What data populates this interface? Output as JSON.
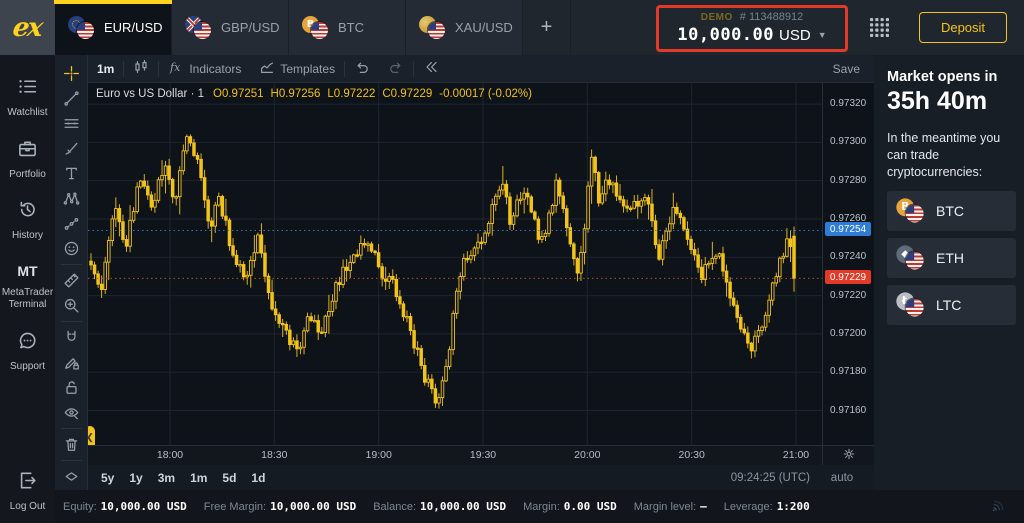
{
  "header": {
    "tabs": [
      {
        "label": "EUR/USD",
        "flag": "eur",
        "active": true
      },
      {
        "label": "GBP/USD",
        "flag": "gbp",
        "active": false
      },
      {
        "label": "BTC",
        "flag": "btc",
        "active": false
      },
      {
        "label": "XAU/USD",
        "flag": "xau",
        "active": false
      }
    ],
    "add_tab_label": "+",
    "account": {
      "badge": "DEMO",
      "id": "# 113488912",
      "balance": "10,000.00",
      "currency": "USD"
    },
    "deposit_label": "Deposit"
  },
  "sidebar": {
    "items": [
      {
        "label": "Watchlist",
        "icon": "watchlist"
      },
      {
        "label": "Portfolio",
        "icon": "portfolio"
      },
      {
        "label": "History",
        "icon": "history"
      },
      {
        "label": "MetaTrader Terminal",
        "icon": "mt",
        "icon_text": "MT"
      },
      {
        "label": "Support",
        "icon": "support"
      }
    ],
    "logout": {
      "label": "Log Out",
      "icon": "logout"
    }
  },
  "toolbar": {
    "interval": "1m",
    "indicators_label": "Indicators",
    "templates_label": "Templates",
    "save_label": "Save"
  },
  "drawbar": {
    "active_tool": "crosshair",
    "tools": [
      "crosshair",
      "trend-line",
      "parallel-lines",
      "brush",
      "text",
      "xabcd-pattern",
      "forecast",
      "emoji",
      "ruler",
      "zoom-in",
      "magnet",
      "drawing-lock",
      "lock-all",
      "hide-all",
      "trash",
      "collapse"
    ]
  },
  "chart_data": {
    "type": "candlestick",
    "title": "Euro vs US Dollar",
    "interval": "1",
    "legend_ohlc": {
      "open": "0.97251",
      "high": "0.97256",
      "low": "0.97222",
      "close": "0.97229",
      "change": "-0.00017 (-0.02%)"
    },
    "last_candle": {
      "open": 0.97251,
      "high": 0.97256,
      "low": 0.97222,
      "close": 0.97229
    },
    "ask_price": 0.97254,
    "ask_label": "0.97254",
    "bid_price": 0.97229,
    "bid_label": "0.97229",
    "y_ticks": [
      "0.97320",
      "0.97300",
      "0.97280",
      "0.97260",
      "0.97240",
      "0.97220",
      "0.97200",
      "0.97180",
      "0.97160"
    ],
    "x_ticks": [
      "18:00",
      "18:30",
      "19:00",
      "19:30",
      "20:00",
      "20:30",
      "21:00"
    ],
    "y_range": [
      0.97142,
      0.97331
    ],
    "grid": true,
    "legend_position": "top-left",
    "candle_count": 199,
    "waypoints": [
      [
        0.0,
        0.97238
      ],
      [
        0.014,
        0.97222
      ],
      [
        0.032,
        0.97266
      ],
      [
        0.05,
        0.97246
      ],
      [
        0.068,
        0.97278
      ],
      [
        0.088,
        0.97268
      ],
      [
        0.105,
        0.97288
      ],
      [
        0.12,
        0.9727
      ],
      [
        0.135,
        0.97308
      ],
      [
        0.152,
        0.97288
      ],
      [
        0.168,
        0.97255
      ],
      [
        0.182,
        0.9727
      ],
      [
        0.205,
        0.97238
      ],
      [
        0.22,
        0.97228
      ],
      [
        0.237,
        0.97252
      ],
      [
        0.262,
        0.97208
      ],
      [
        0.295,
        0.97192
      ],
      [
        0.31,
        0.97212
      ],
      [
        0.325,
        0.97198
      ],
      [
        0.345,
        0.97222
      ],
      [
        0.37,
        0.9724
      ],
      [
        0.392,
        0.9725
      ],
      [
        0.412,
        0.97232
      ],
      [
        0.432,
        0.97225
      ],
      [
        0.455,
        0.972
      ],
      [
        0.475,
        0.97178
      ],
      [
        0.49,
        0.97163
      ],
      [
        0.505,
        0.9718
      ],
      [
        0.522,
        0.9723
      ],
      [
        0.538,
        0.97242
      ],
      [
        0.555,
        0.97248
      ],
      [
        0.585,
        0.97283
      ],
      [
        0.595,
        0.9726
      ],
      [
        0.62,
        0.97276
      ],
      [
        0.64,
        0.97246
      ],
      [
        0.662,
        0.97278
      ],
      [
        0.68,
        0.9725
      ],
      [
        0.694,
        0.97232
      ],
      [
        0.705,
        0.97262
      ],
      [
        0.711,
        0.97296
      ],
      [
        0.722,
        0.9727
      ],
      [
        0.74,
        0.97282
      ],
      [
        0.76,
        0.97262
      ],
      [
        0.788,
        0.97274
      ],
      [
        0.809,
        0.9724
      ],
      [
        0.83,
        0.97268
      ],
      [
        0.85,
        0.97248
      ],
      [
        0.868,
        0.9723
      ],
      [
        0.89,
        0.97244
      ],
      [
        0.905,
        0.97224
      ],
      [
        0.92,
        0.9721
      ],
      [
        0.94,
        0.97191
      ],
      [
        0.96,
        0.97212
      ],
      [
        0.978,
        0.97235
      ],
      [
        0.992,
        0.97252
      ],
      [
        1.0,
        0.9724
      ]
    ]
  },
  "right_panel": {
    "title": "Market opens in",
    "countdown": "35h 40m",
    "subtitle": "In the meantime you can trade cryptocurrencies:",
    "cryptos": [
      {
        "label": "BTC",
        "icon": "btc"
      },
      {
        "label": "ETH",
        "icon": "eth"
      },
      {
        "label": "LTC",
        "icon": "ltc"
      }
    ]
  },
  "bottom": {
    "timeframes": [
      "5y",
      "1y",
      "3m",
      "1m",
      "5d",
      "1d"
    ],
    "clock": "09:24:25 (UTC)",
    "scale_mode": "auto"
  },
  "status_bar": {
    "items": [
      {
        "label": "Equity:",
        "value": "10,000.00 USD"
      },
      {
        "label": "Free Margin:",
        "value": "10,000.00 USD"
      },
      {
        "label": "Balance:",
        "value": "10,000.00 USD"
      },
      {
        "label": "Margin:",
        "value": "0.00 USD"
      },
      {
        "label": "Margin level:",
        "value": "–"
      },
      {
        "label": "Leverage:",
        "value": "1:200"
      }
    ]
  },
  "colors": {
    "accent": "#ffd21e",
    "candle": "#f2c31a",
    "chart_bg": "#0e1319",
    "grid_line": "#1d2530",
    "ask_badge": "#2e7cd6",
    "bid_badge": "#e23a29",
    "ask_line": "#3b7fd4",
    "bid_line": "#c05a28",
    "annotation": "#e23a28"
  }
}
